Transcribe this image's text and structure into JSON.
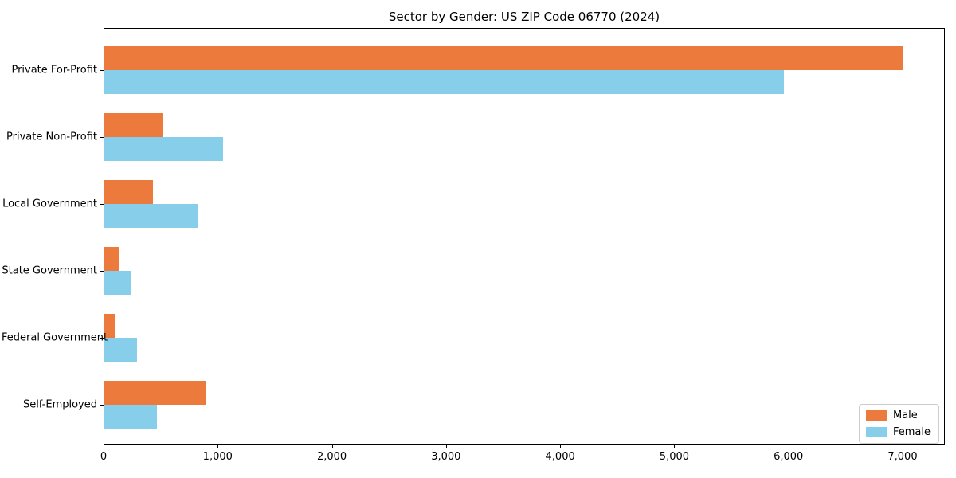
{
  "title": "Sector by Gender: US ZIP Code 06770 (2024)",
  "chart_data": {
    "type": "bar",
    "orientation": "horizontal",
    "title": "Sector by Gender: US ZIP Code 06770 (2024)",
    "categories": [
      "Private For-Profit",
      "Private Non-Profit",
      "Local Government",
      "State Government",
      "Federal Government",
      "Self-Employed"
    ],
    "series": [
      {
        "name": "Male",
        "color": "#EB7A3C",
        "values": [
          7010,
          520,
          435,
          135,
          95,
          890
        ]
      },
      {
        "name": "Female",
        "color": "#87CEEB",
        "values": [
          5960,
          1050,
          825,
          235,
          295,
          465
        ]
      }
    ],
    "xlim": [
      0,
      7370
    ],
    "x_ticks": [
      0,
      1000,
      2000,
      3000,
      4000,
      5000,
      6000,
      7000
    ],
    "x_tick_labels": [
      "0",
      "1,000",
      "2,000",
      "3,000",
      "4,000",
      "5,000",
      "6,000",
      "7,000"
    ],
    "xlabel": "",
    "ylabel": "",
    "grid": false,
    "legend": {
      "position": "lower right",
      "entries": [
        "Male",
        "Female"
      ]
    }
  }
}
